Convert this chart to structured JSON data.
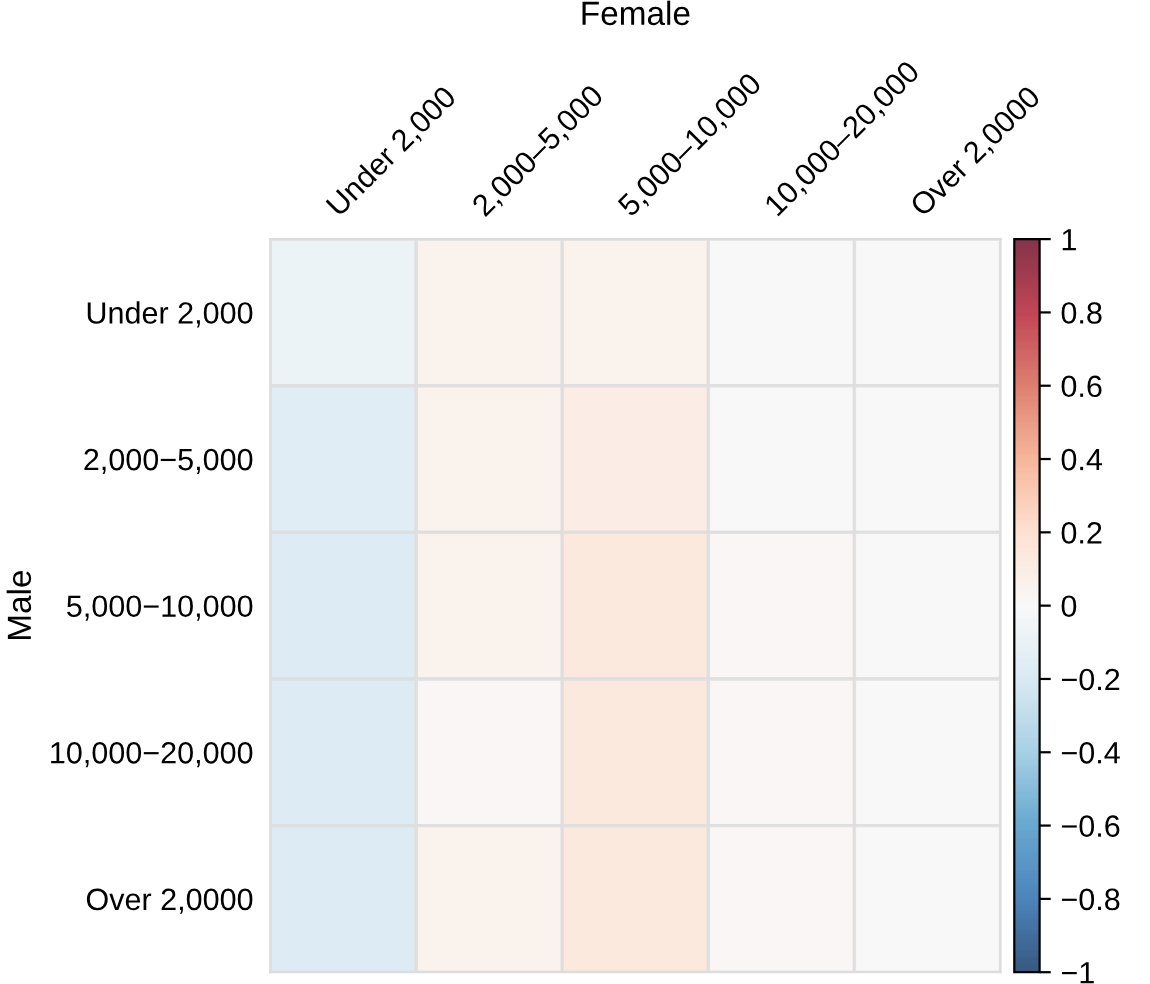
{
  "chart_data": {
    "type": "heatmap",
    "xlabel": "Female",
    "ylabel": "Male",
    "categories": [
      "Under 2,000",
      "2,000–5,000",
      "5,000–10,000",
      "10,000–20,000",
      "Over 2,0000"
    ],
    "y_categories": [
      "Under 2,000",
      "2,000−5,000",
      "5,000−10,000",
      "10,000−20,000",
      "Over 2,0000"
    ],
    "cells": [
      [
        -0.08,
        0.06,
        0.06,
        0,
        0
      ],
      [
        -0.15,
        0.06,
        0.1,
        0,
        0
      ],
      [
        -0.18,
        0.06,
        0.14,
        0.02,
        0
      ],
      [
        -0.18,
        0.02,
        0.14,
        0.02,
        0
      ],
      [
        -0.18,
        0.06,
        0.14,
        0.02,
        0
      ]
    ],
    "clim": [
      -1,
      1
    ],
    "cticks": [
      {
        "value": -1,
        "label": "−1"
      },
      {
        "value": -0.8,
        "label": "−0.8"
      },
      {
        "value": -0.6,
        "label": "−0.6"
      },
      {
        "value": -0.4,
        "label": "−0.4"
      },
      {
        "value": -0.2,
        "label": "−0.2"
      },
      0,
      0.2,
      0.4,
      0.6,
      0.8,
      1
    ]
  }
}
